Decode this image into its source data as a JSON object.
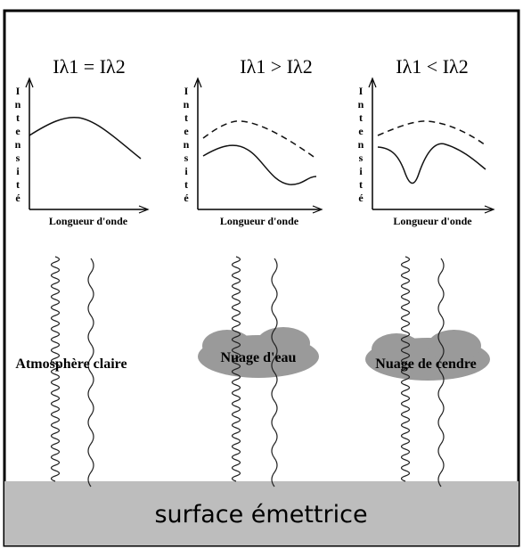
{
  "panels": [
    {
      "title": "Iλ1 = Iλ2",
      "y_label": "Intensité",
      "x_label": "Longueur d'onde",
      "scene_label": "Atmosphère claire"
    },
    {
      "title": "Iλ1 > Iλ2",
      "y_label": "Intensité",
      "x_label": "Longueur d'onde",
      "scene_label": "Nuage d'eau"
    },
    {
      "title": "Iλ1 < Iλ2",
      "y_label": "Intensité",
      "x_label": "Longueur d'onde",
      "scene_label": "Nuage de cendre"
    }
  ],
  "surface": {
    "label": "surface émettrice"
  }
}
